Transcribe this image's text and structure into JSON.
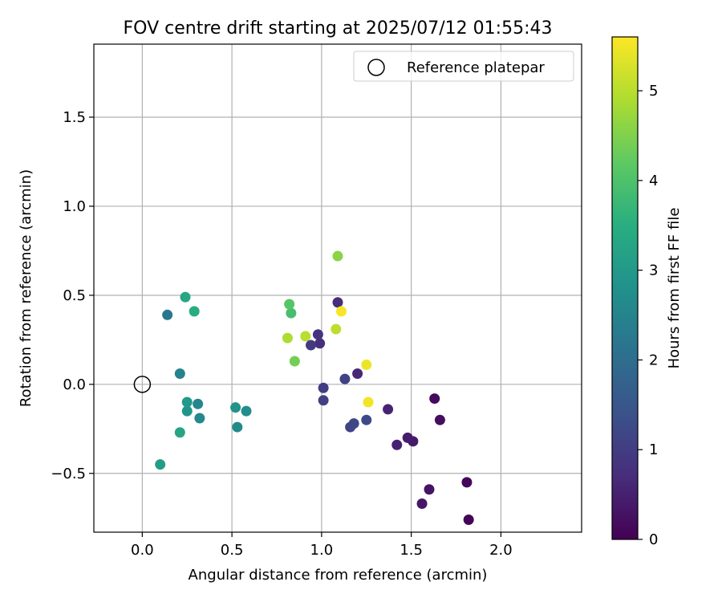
{
  "chart_data": {
    "type": "scatter",
    "title": "FOV centre drift starting at 2025/07/12 01:55:43",
    "xlabel": "Angular distance from reference (arcmin)",
    "ylabel": "Rotation from reference (arcmin)",
    "xlim": [
      -0.27,
      2.45
    ],
    "ylim": [
      -0.83,
      1.91
    ],
    "xticks": [
      0.0,
      0.5,
      1.0,
      1.5,
      2.0
    ],
    "xtick_labels": [
      "0.0",
      "0.5",
      "1.0",
      "1.5",
      "2.0"
    ],
    "yticks": [
      -0.5,
      0.0,
      0.5,
      1.0,
      1.5
    ],
    "ytick_labels": [
      "−0.5",
      "0.0",
      "0.5",
      "1.0",
      "1.5"
    ],
    "grid": true,
    "legend": {
      "placement": "top-right",
      "entries": [
        "Reference platepar"
      ]
    },
    "reference_point": {
      "x": 0.0,
      "y": 0.0,
      "label": "Reference platepar"
    },
    "colorbar": {
      "label": "Hours from first FF file",
      "colormap": "viridis",
      "range": [
        0,
        5.6
      ],
      "ticks": [
        0,
        1,
        2,
        3,
        4,
        5
      ],
      "tick_labels": [
        "0",
        "1",
        "2",
        "3",
        "4",
        "5"
      ]
    },
    "points": [
      {
        "x": 1.82,
        "y": -0.76,
        "c": 0.05
      },
      {
        "x": 1.81,
        "y": -0.55,
        "c": 0.1
      },
      {
        "x": 1.63,
        "y": -0.08,
        "c": 0.15
      },
      {
        "x": 1.66,
        "y": -0.2,
        "c": 0.2
      },
      {
        "x": 1.6,
        "y": -0.59,
        "c": 0.3
      },
      {
        "x": 1.56,
        "y": -0.67,
        "c": 0.35
      },
      {
        "x": 1.51,
        "y": -0.32,
        "c": 0.4
      },
      {
        "x": 1.48,
        "y": -0.3,
        "c": 0.45
      },
      {
        "x": 1.42,
        "y": -0.34,
        "c": 0.5
      },
      {
        "x": 1.37,
        "y": -0.14,
        "c": 0.55
      },
      {
        "x": 1.2,
        "y": 0.06,
        "c": 0.6
      },
      {
        "x": 1.09,
        "y": 0.46,
        "c": 0.7
      },
      {
        "x": 0.99,
        "y": 0.23,
        "c": 0.75
      },
      {
        "x": 0.98,
        "y": 0.28,
        "c": 0.85
      },
      {
        "x": 0.94,
        "y": 0.22,
        "c": 0.95
      },
      {
        "x": 1.01,
        "y": -0.02,
        "c": 1.0
      },
      {
        "x": 1.01,
        "y": -0.09,
        "c": 1.05
      },
      {
        "x": 1.13,
        "y": 0.03,
        "c": 1.1
      },
      {
        "x": 1.16,
        "y": -0.24,
        "c": 1.15
      },
      {
        "x": 1.18,
        "y": -0.22,
        "c": 1.2
      },
      {
        "x": 1.25,
        "y": -0.2,
        "c": 1.25
      },
      {
        "x": 0.14,
        "y": 0.39,
        "c": 2.2
      },
      {
        "x": 0.21,
        "y": 0.06,
        "c": 2.45
      },
      {
        "x": 0.31,
        "y": -0.11,
        "c": 2.55
      },
      {
        "x": 0.32,
        "y": -0.19,
        "c": 2.6
      },
      {
        "x": 0.53,
        "y": -0.24,
        "c": 2.65
      },
      {
        "x": 0.58,
        "y": -0.15,
        "c": 2.7
      },
      {
        "x": 0.52,
        "y": -0.13,
        "c": 2.85
      },
      {
        "x": 0.25,
        "y": -0.15,
        "c": 2.9
      },
      {
        "x": 0.25,
        "y": -0.1,
        "c": 3.0
      },
      {
        "x": 0.1,
        "y": -0.45,
        "c": 3.1
      },
      {
        "x": 0.21,
        "y": -0.27,
        "c": 3.25
      },
      {
        "x": 0.24,
        "y": 0.49,
        "c": 3.3
      },
      {
        "x": 0.29,
        "y": 0.41,
        "c": 3.45
      },
      {
        "x": 0.83,
        "y": 0.4,
        "c": 3.9
      },
      {
        "x": 0.82,
        "y": 0.45,
        "c": 4.1
      },
      {
        "x": 0.85,
        "y": 0.13,
        "c": 4.4
      },
      {
        "x": 1.09,
        "y": 0.72,
        "c": 4.6
      },
      {
        "x": 0.81,
        "y": 0.26,
        "c": 4.9
      },
      {
        "x": 0.91,
        "y": 0.27,
        "c": 5.0
      },
      {
        "x": 1.08,
        "y": 0.31,
        "c": 5.05
      },
      {
        "x": 1.25,
        "y": 0.11,
        "c": 5.45
      },
      {
        "x": 1.26,
        "y": -0.1,
        "c": 5.5
      },
      {
        "x": 1.11,
        "y": 0.41,
        "c": 5.55
      }
    ]
  }
}
